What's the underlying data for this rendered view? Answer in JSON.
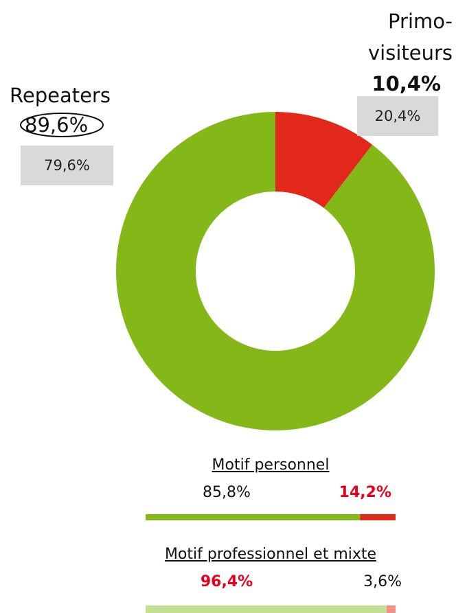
{
  "chart_data": [
    {
      "type": "donut",
      "categories": [
        "Repeaters",
        "Primo-visiteurs"
      ],
      "values": [
        89.6,
        10.4
      ],
      "value_labels": [
        "89,6%",
        "10,4%"
      ],
      "previous_labels": [
        "79,6%",
        "20,4%"
      ],
      "colors": [
        "#84b819",
        "#e2271b"
      ]
    },
    {
      "type": "stacked_bar",
      "title": "Motif personnel",
      "xlim": [
        0,
        100
      ],
      "series": [
        {
          "color": "#84b819",
          "values": [
            85.8
          ],
          "value_labels": [
            "85,8%"
          ]
        },
        {
          "color": "#e2271b",
          "values": [
            14.2
          ],
          "value_labels": [
            "14,2%"
          ]
        }
      ]
    },
    {
      "type": "stacked_bar",
      "title": "Motif professionnel et mixte",
      "xlim": [
        0,
        100
      ],
      "series": [
        {
          "color": "#c3df93",
          "values": [
            96.4
          ],
          "value_labels": [
            "96,4%"
          ]
        },
        {
          "color": "#f2918a",
          "values": [
            3.6
          ],
          "value_labels": [
            "3,6%"
          ]
        }
      ]
    }
  ]
}
